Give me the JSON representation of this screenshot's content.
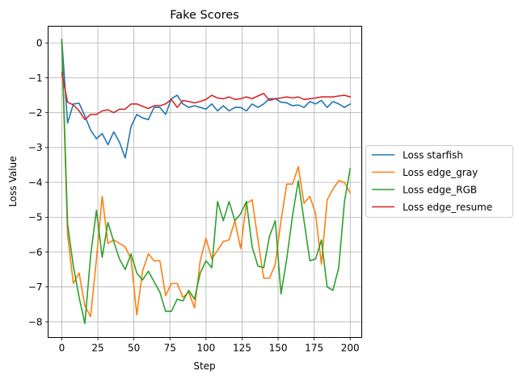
{
  "chart_data": {
    "type": "line",
    "title": "Fake Scores",
    "xlabel": "Step",
    "ylabel": "Loss Value",
    "xlim": [
      -9.5,
      208
    ],
    "ylim": [
      -8.45,
      0.48
    ],
    "xticks": [
      0,
      25,
      50,
      75,
      100,
      125,
      150,
      175,
      200
    ],
    "yticks": [
      0,
      -1,
      -2,
      -3,
      -4,
      -5,
      -6,
      -7,
      -8
    ],
    "xtick_labels": [
      "0",
      "25",
      "50",
      "75",
      "100",
      "125",
      "150",
      "175",
      "200"
    ],
    "ytick_labels": [
      "0",
      "−1",
      "−2",
      "−3",
      "−4",
      "−5",
      "−6",
      "−7",
      "−8"
    ],
    "grid": true,
    "legend_position": "outside-right",
    "x": [
      0,
      4,
      8,
      12,
      16,
      20,
      24,
      28,
      32,
      36,
      40,
      44,
      48,
      52,
      56,
      60,
      64,
      68,
      72,
      76,
      80,
      84,
      88,
      92,
      96,
      100,
      104,
      108,
      112,
      116,
      120,
      124,
      128,
      132,
      136,
      140,
      144,
      148,
      152,
      156,
      160,
      164,
      168,
      172,
      176,
      180,
      184,
      188,
      192,
      196,
      200
    ],
    "series": [
      {
        "name": "Loss starfish",
        "color": "#1f77b4",
        "values": [
          0.1,
          -2.3,
          -1.75,
          -1.73,
          -2.1,
          -2.5,
          -2.75,
          -2.6,
          -2.92,
          -2.55,
          -2.85,
          -3.3,
          -2.4,
          -2.05,
          -2.15,
          -2.2,
          -1.85,
          -1.85,
          -2.05,
          -1.6,
          -1.5,
          -1.75,
          -1.85,
          -1.8,
          -1.85,
          -1.9,
          -1.75,
          -1.95,
          -1.8,
          -1.95,
          -1.85,
          -1.85,
          -1.95,
          -1.75,
          -1.85,
          -1.75,
          -1.6,
          -1.6,
          -1.7,
          -1.72,
          -1.8,
          -1.78,
          -1.85,
          -1.68,
          -1.75,
          -1.65,
          -1.85,
          -1.68,
          -1.75,
          -1.85,
          -1.75
        ]
      },
      {
        "name": "Loss edge_gray",
        "color": "#ff7f0e",
        "values": [
          0.05,
          -5.5,
          -6.9,
          -6.6,
          -7.55,
          -7.85,
          -6.2,
          -4.4,
          -5.75,
          -5.65,
          -5.75,
          -5.85,
          -6.2,
          -7.8,
          -6.55,
          -6.05,
          -6.25,
          -6.25,
          -7.25,
          -6.9,
          -6.9,
          -7.3,
          -7.15,
          -7.6,
          -6.25,
          -5.6,
          -6.2,
          -5.95,
          -5.7,
          -5.65,
          -5.1,
          -5.9,
          -4.6,
          -4.5,
          -5.65,
          -6.75,
          -6.75,
          -6.35,
          -5.1,
          -4.05,
          -4.05,
          -3.55,
          -4.6,
          -4.4,
          -4.9,
          -6.35,
          -4.5,
          -4.2,
          -3.95,
          -4.0,
          -4.3
        ]
      },
      {
        "name": "Loss edge_RGB",
        "color": "#2ca02c",
        "values": [
          0.1,
          -5.2,
          -6.4,
          -7.3,
          -8.05,
          -6.1,
          -4.8,
          -6.15,
          -5.15,
          -5.7,
          -6.2,
          -6.5,
          -6.05,
          -6.6,
          -6.8,
          -6.55,
          -6.85,
          -7.15,
          -7.7,
          -7.7,
          -7.35,
          -7.4,
          -7.1,
          -7.35,
          -6.6,
          -6.25,
          -6.45,
          -4.55,
          -5.1,
          -4.55,
          -5.1,
          -4.9,
          -4.55,
          -5.85,
          -6.4,
          -6.45,
          -5.55,
          -5.1,
          -7.2,
          -6.2,
          -4.95,
          -3.95,
          -5.1,
          -6.25,
          -6.2,
          -5.65,
          -7.0,
          -7.1,
          -6.45,
          -4.55,
          -3.6
        ]
      },
      {
        "name": "Loss edge_resume",
        "color": "#d62728",
        "values": [
          -0.85,
          -1.7,
          -1.78,
          -1.95,
          -2.2,
          -2.05,
          -2.05,
          -1.95,
          -1.92,
          -2.0,
          -1.9,
          -1.9,
          -1.75,
          -1.75,
          -1.82,
          -1.88,
          -1.8,
          -1.8,
          -1.75,
          -1.62,
          -1.85,
          -1.65,
          -1.68,
          -1.72,
          -1.68,
          -1.62,
          -1.5,
          -1.58,
          -1.6,
          -1.55,
          -1.62,
          -1.6,
          -1.55,
          -1.6,
          -1.52,
          -1.45,
          -1.65,
          -1.6,
          -1.58,
          -1.55,
          -1.58,
          -1.55,
          -1.62,
          -1.6,
          -1.58,
          -1.55,
          -1.55,
          -1.55,
          -1.52,
          -1.5,
          -1.55
        ]
      }
    ]
  }
}
